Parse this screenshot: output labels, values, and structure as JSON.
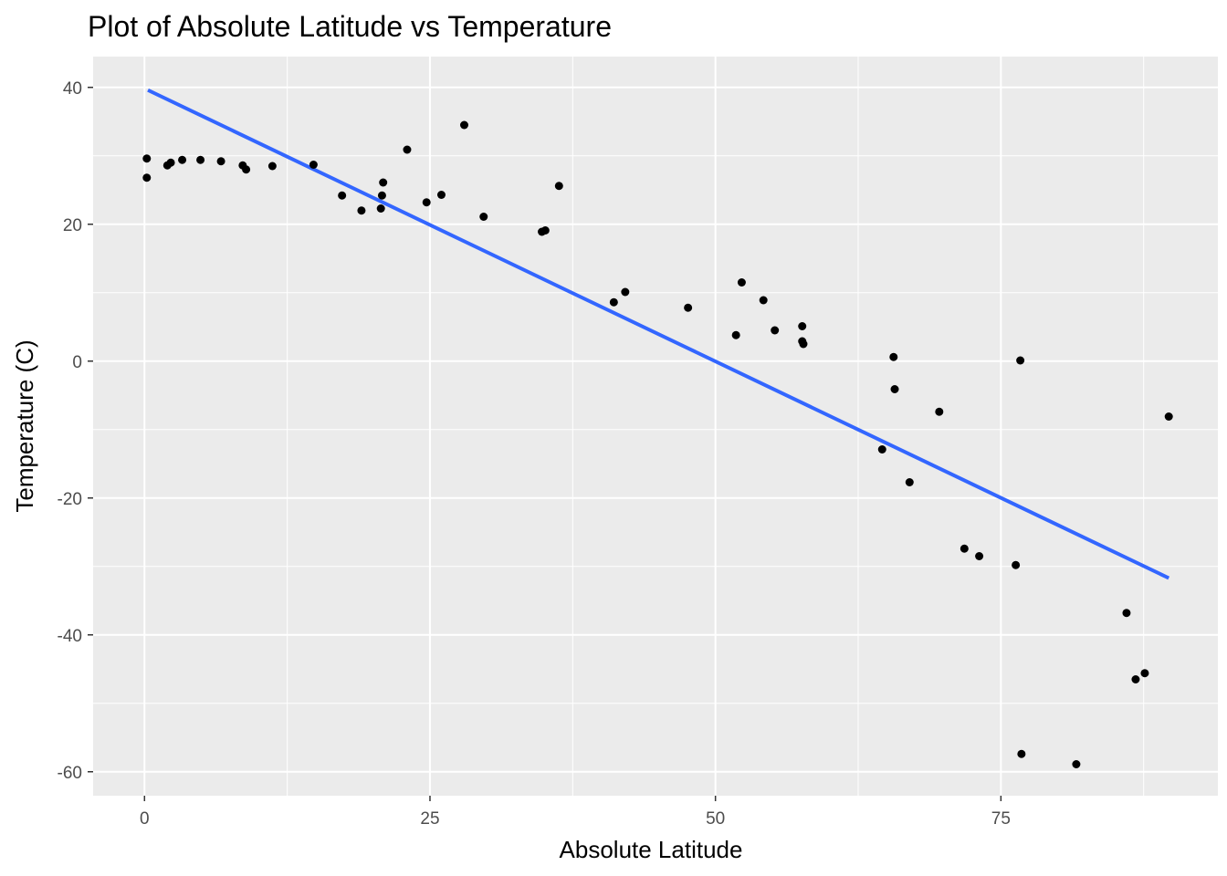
{
  "chart_data": {
    "type": "scatter",
    "title": "Plot of Absolute Latitude vs Temperature",
    "xlabel": "Absolute Latitude",
    "ylabel": "Temperature (C)",
    "xlim": [
      -4.5,
      94
    ],
    "ylim": [
      -63.5,
      44.5
    ],
    "x_ticks": [
      0,
      25,
      50,
      75
    ],
    "x_tick_labels": [
      "0",
      "25",
      "50",
      "75"
    ],
    "y_ticks": [
      -60,
      -40,
      -20,
      0,
      20,
      40
    ],
    "y_tick_labels": [
      "-60",
      "-40",
      "-20",
      "0",
      "20",
      "40"
    ],
    "grid": true,
    "legend": "none",
    "colors": {
      "panel": "#ebebeb",
      "grid": "#ffffff",
      "point": "#000000",
      "fit_line": "#3366ff"
    },
    "points": [
      {
        "x": 0.2,
        "y": 29.6
      },
      {
        "x": 0.2,
        "y": 26.8
      },
      {
        "x": 2.0,
        "y": 28.6
      },
      {
        "x": 2.3,
        "y": 29.0
      },
      {
        "x": 3.3,
        "y": 29.4
      },
      {
        "x": 4.9,
        "y": 29.4
      },
      {
        "x": 6.7,
        "y": 29.2
      },
      {
        "x": 8.6,
        "y": 28.6
      },
      {
        "x": 8.9,
        "y": 28.0
      },
      {
        "x": 11.2,
        "y": 28.5
      },
      {
        "x": 14.8,
        "y": 28.7
      },
      {
        "x": 17.3,
        "y": 24.2
      },
      {
        "x": 19.0,
        "y": 22.0
      },
      {
        "x": 20.7,
        "y": 22.3
      },
      {
        "x": 20.8,
        "y": 24.2
      },
      {
        "x": 20.9,
        "y": 26.1
      },
      {
        "x": 23.0,
        "y": 30.9
      },
      {
        "x": 24.7,
        "y": 23.2
      },
      {
        "x": 26.0,
        "y": 24.3
      },
      {
        "x": 28.0,
        "y": 34.5
      },
      {
        "x": 29.7,
        "y": 21.1
      },
      {
        "x": 34.8,
        "y": 18.9
      },
      {
        "x": 35.1,
        "y": 19.1
      },
      {
        "x": 36.3,
        "y": 25.6
      },
      {
        "x": 41.1,
        "y": 8.6
      },
      {
        "x": 42.1,
        "y": 10.1
      },
      {
        "x": 47.6,
        "y": 7.8
      },
      {
        "x": 51.8,
        "y": 3.8
      },
      {
        "x": 52.3,
        "y": 11.5
      },
      {
        "x": 54.2,
        "y": 8.9
      },
      {
        "x": 55.2,
        "y": 4.5
      },
      {
        "x": 57.6,
        "y": 5.1
      },
      {
        "x": 57.6,
        "y": 2.9
      },
      {
        "x": 57.7,
        "y": 2.5
      },
      {
        "x": 64.6,
        "y": -12.9
      },
      {
        "x": 65.6,
        "y": 0.6
      },
      {
        "x": 65.7,
        "y": -4.1
      },
      {
        "x": 67.0,
        "y": -17.7
      },
      {
        "x": 69.6,
        "y": -7.4
      },
      {
        "x": 71.8,
        "y": -27.4
      },
      {
        "x": 73.1,
        "y": -28.5
      },
      {
        "x": 76.3,
        "y": -29.8
      },
      {
        "x": 76.7,
        "y": 0.1
      },
      {
        "x": 76.8,
        "y": -57.4
      },
      {
        "x": 81.6,
        "y": -58.9
      },
      {
        "x": 86.0,
        "y": -36.8
      },
      {
        "x": 86.8,
        "y": -46.5
      },
      {
        "x": 87.6,
        "y": -45.6
      },
      {
        "x": 89.7,
        "y": -8.1
      }
    ],
    "fit_line": [
      {
        "x": 0.3,
        "y": 39.6
      },
      {
        "x": 89.7,
        "y": -31.7
      }
    ]
  }
}
